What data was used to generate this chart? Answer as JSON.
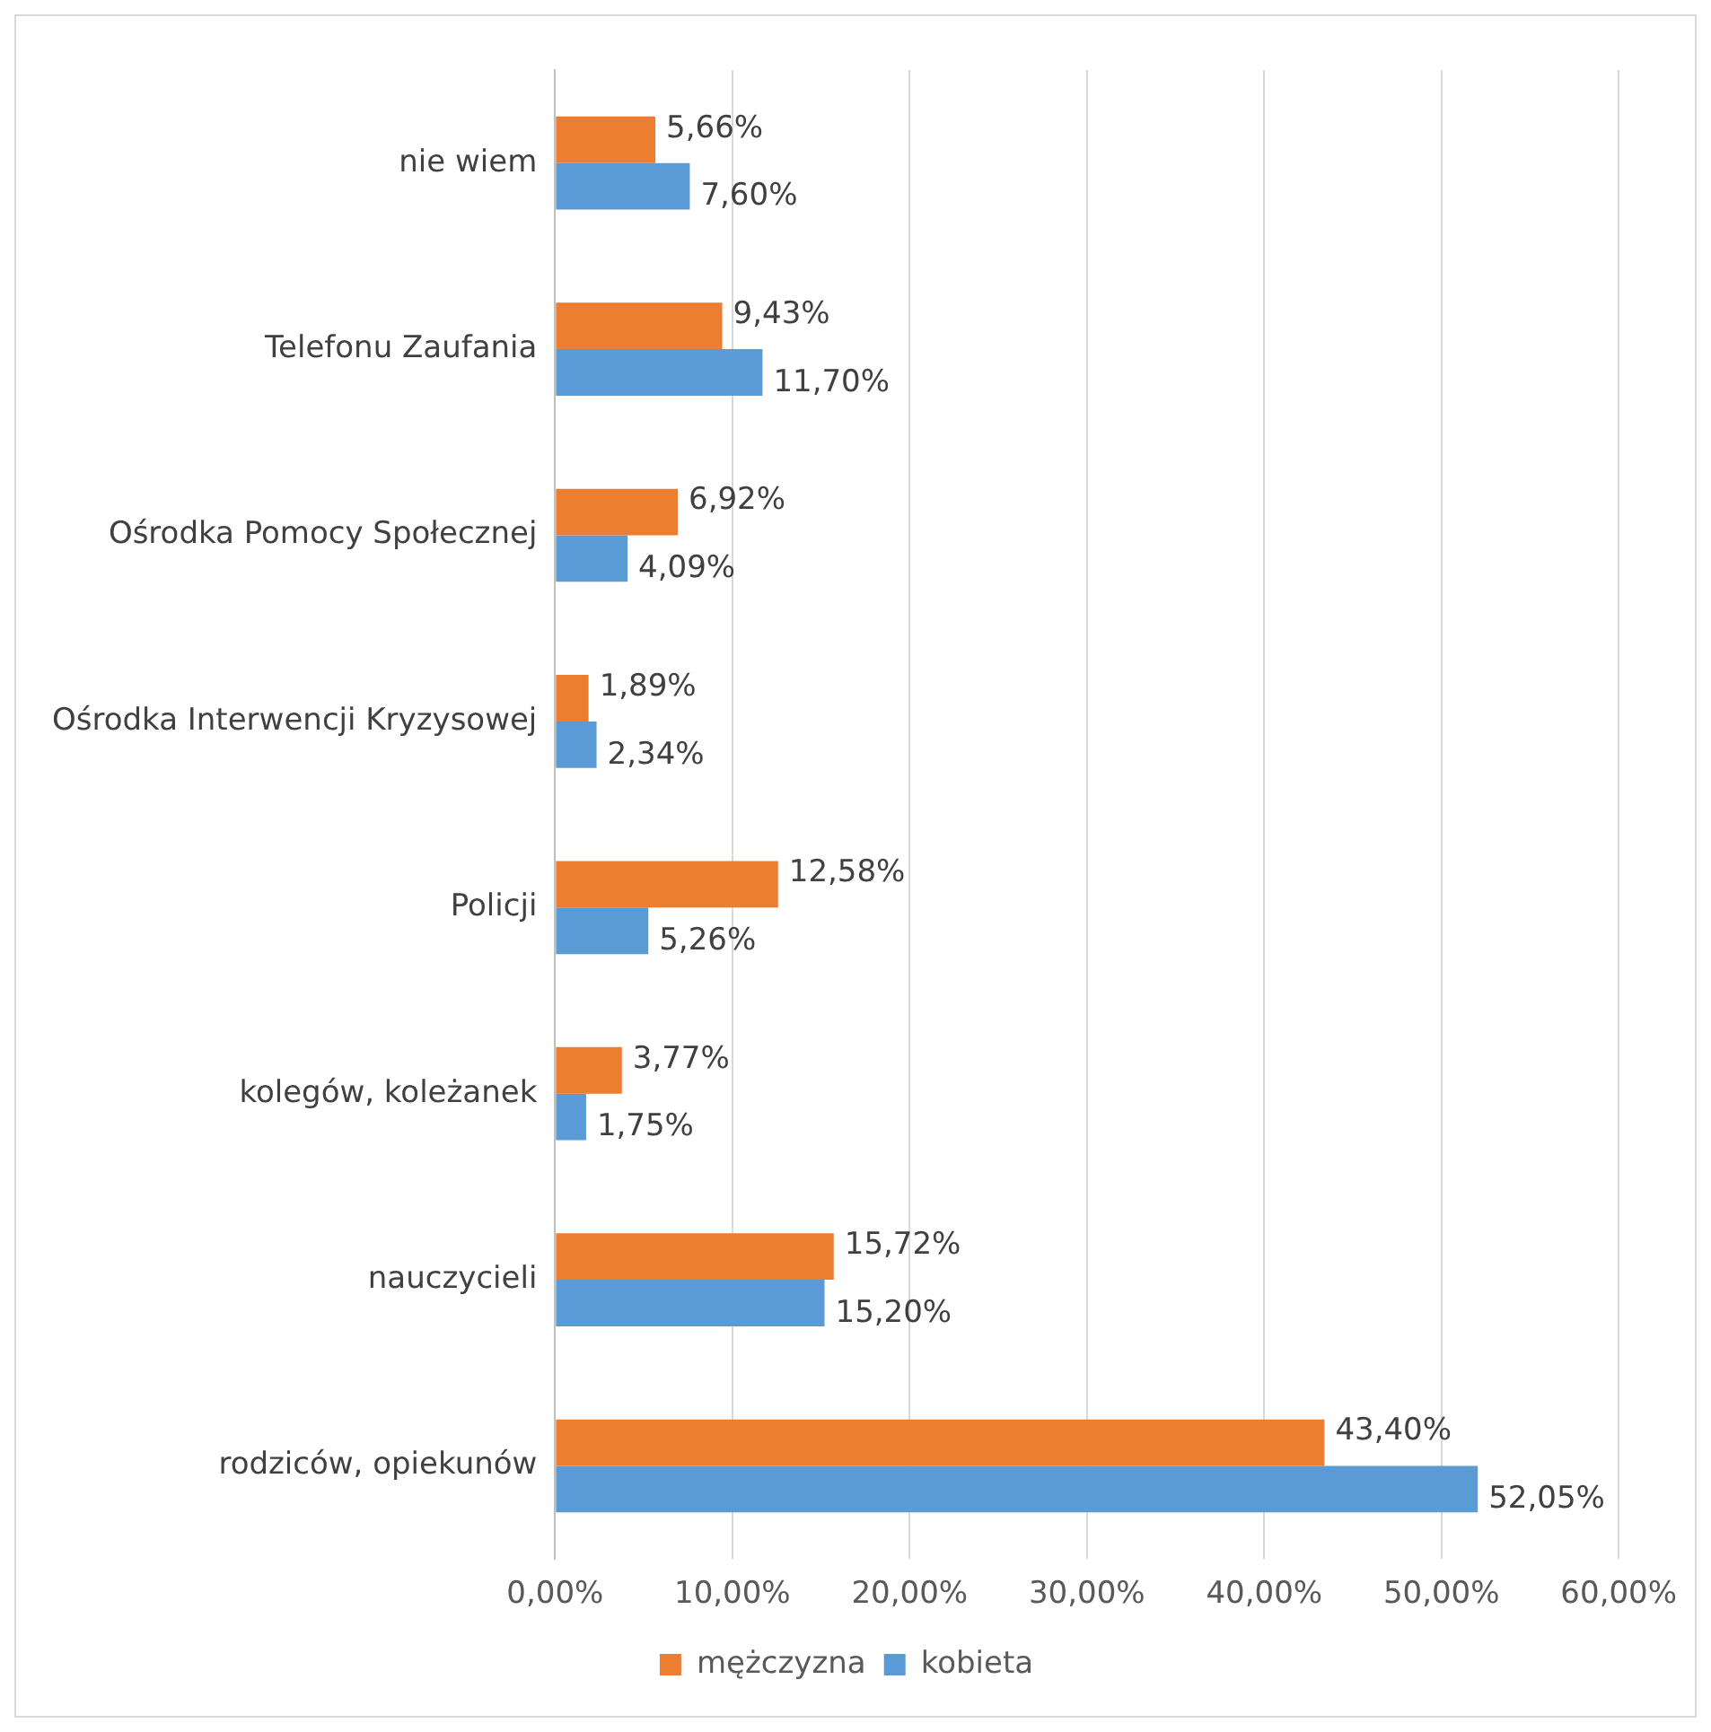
{
  "chart_data": {
    "type": "bar",
    "orientation": "horizontal",
    "categories": [
      "nie wiem",
      "Telefonu Zaufania",
      "Ośrodka Pomocy Społecznej",
      "Ośrodka Interwencji Kryzysowej",
      "Policji",
      "kolegów, koleżanek",
      "nauczycieli",
      "rodziców, opiekunów"
    ],
    "series": [
      {
        "name": "mężczyzna",
        "color": "#ed7d31",
        "values": [
          5.66,
          9.43,
          6.92,
          1.89,
          12.58,
          3.77,
          15.72,
          43.4
        ],
        "value_labels": [
          "5,66%",
          "9,43%",
          "6,92%",
          "1,89%",
          "12,58%",
          "3,77%",
          "15,72%",
          "43,40%"
        ]
      },
      {
        "name": "kobieta",
        "color": "#5b9bd5",
        "values": [
          7.6,
          11.7,
          4.09,
          2.34,
          5.26,
          1.75,
          15.2,
          52.05
        ],
        "value_labels": [
          "7,60%",
          "11,70%",
          "4,09%",
          "2,34%",
          "5,26%",
          "1,75%",
          "15,20%",
          "52,05%"
        ]
      }
    ],
    "xlim": [
      0,
      60
    ],
    "xticks": [
      {
        "value": 0,
        "label": "0,00%"
      },
      {
        "value": 10,
        "label": "10,00%"
      },
      {
        "value": 20,
        "label": "20,00%"
      },
      {
        "value": 30,
        "label": "30,00%"
      },
      {
        "value": 40,
        "label": "40,00%"
      },
      {
        "value": 50,
        "label": "50,00%"
      },
      {
        "value": 60,
        "label": "60,00%"
      }
    ],
    "grid": "x",
    "legend": "bottom"
  }
}
